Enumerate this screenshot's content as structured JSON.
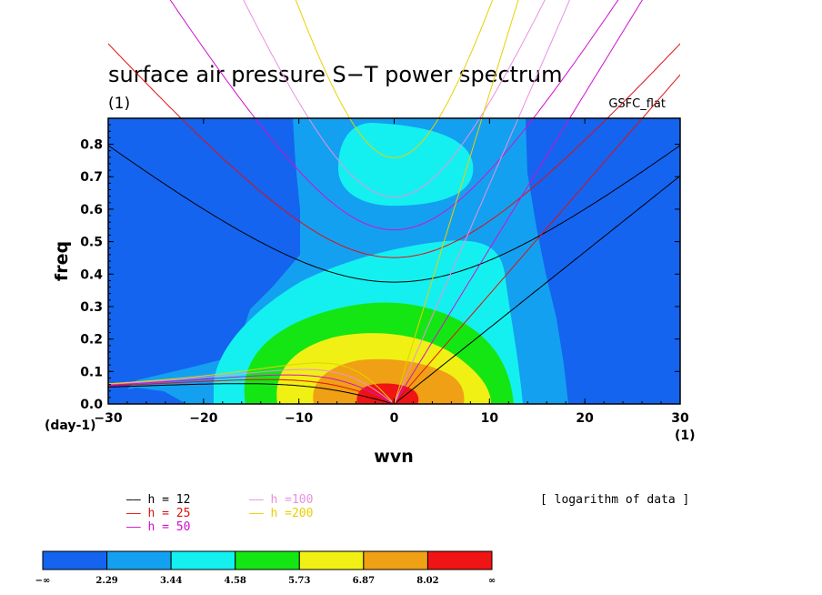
{
  "chart_data": {
    "type": "heatmap",
    "title": "surface air pressure S−T power spectrum",
    "subtitle_left": "(1)",
    "subtitle_right": "GSFC_flat",
    "xlabel": "wvn",
    "ylabel": "freq",
    "x_unit_left": "(day-1)",
    "x_unit_right": "(1)",
    "xlim": [
      -30,
      30
    ],
    "ylim": [
      0,
      0.88
    ],
    "x_ticks": [
      "−30",
      "−20",
      "−10",
      "0",
      "10",
      "20",
      "30"
    ],
    "x_tick_values": [
      -30,
      -20,
      -10,
      0,
      10,
      20,
      30
    ],
    "y_ticks": [
      "0.0",
      "0.1",
      "0.2",
      "0.3",
      "0.4",
      "0.5",
      "0.6",
      "0.7",
      "0.8"
    ],
    "y_tick_values": [
      0,
      0.1,
      0.2,
      0.3,
      0.4,
      0.5,
      0.6,
      0.7,
      0.8
    ],
    "note": "[ logarithm of data ]",
    "colorbar": {
      "colors": [
        "#1464f0",
        "#14a0f0",
        "#14f0f0",
        "#14e614",
        "#f0f014",
        "#f0a014",
        "#f01414"
      ],
      "labels": [
        "−∞",
        "2.29",
        "3.44",
        "4.58",
        "5.73",
        "6.87",
        "8.02",
        "∞"
      ]
    },
    "dispersion_legend": [
      {
        "label": "h = 12",
        "color": "#000000",
        "h": 12
      },
      {
        "label": "h = 25",
        "color": "#e01010",
        "h": 25
      },
      {
        "label": "h = 50",
        "color": "#d010d0",
        "h": 50
      },
      {
        "label": "h =100",
        "color": "#e890e0",
        "h": 100
      },
      {
        "label": "h =200",
        "color": "#e8d000",
        "h": 200
      }
    ]
  }
}
